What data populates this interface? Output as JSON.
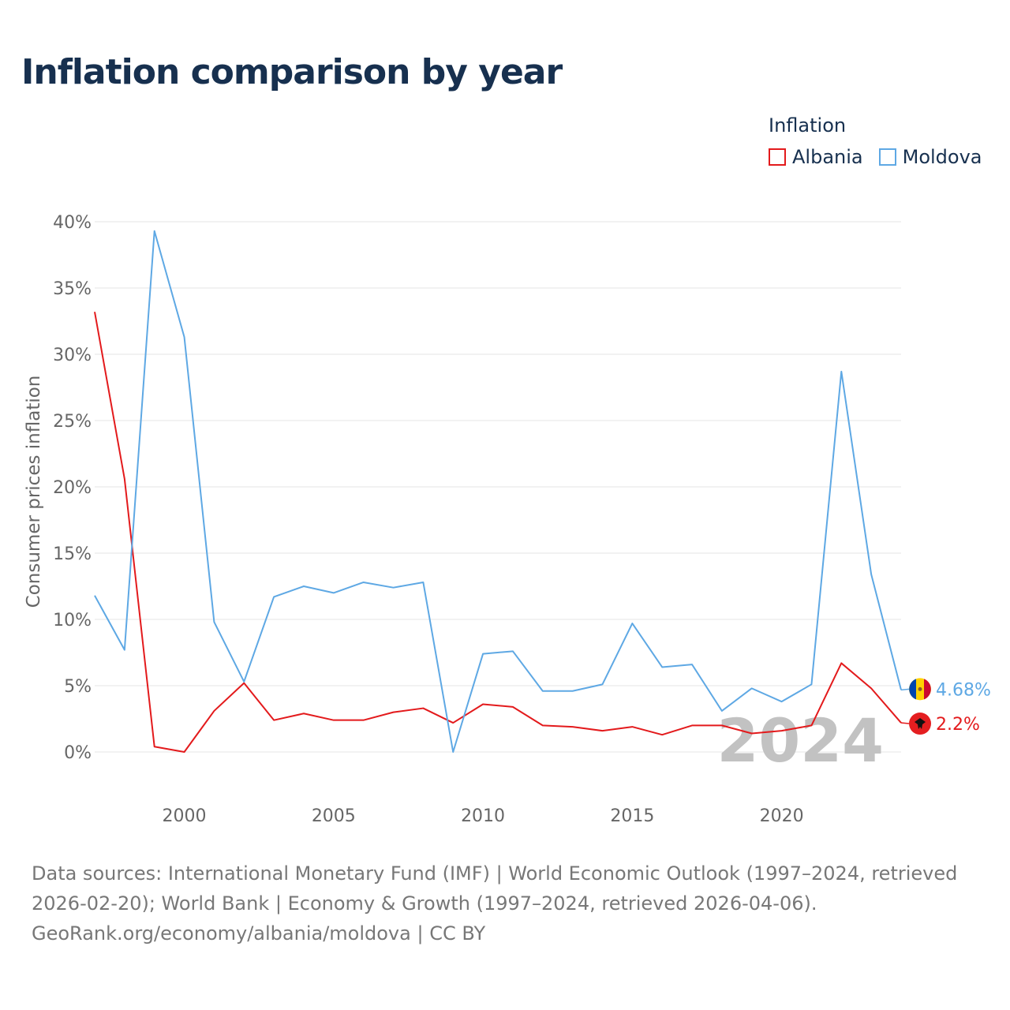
{
  "title": "Inflation comparison by year",
  "legend": {
    "title": "Inflation",
    "items": [
      {
        "label": "Albania",
        "color": "#e31a1c"
      },
      {
        "label": "Moldova",
        "color": "#5ea8e4"
      }
    ]
  },
  "footer": {
    "sources": "Data sources: International Monetary Fund (IMF) | World Economic Outlook (1997–2024, retrieved 2026-02-20); World Bank | Economy & Growth (1997–2024, retrieved 2026-04-06).",
    "attribution": "GeoRank.org/economy/albania/moldova | CC BY"
  },
  "chart_data": {
    "type": "line",
    "title": "Inflation comparison by year",
    "xlabel": "",
    "ylabel": "Consumer prices inflation",
    "x": [
      1997,
      1998,
      1999,
      2000,
      2001,
      2002,
      2003,
      2004,
      2005,
      2006,
      2007,
      2008,
      2009,
      2010,
      2011,
      2012,
      2013,
      2014,
      2015,
      2016,
      2017,
      2018,
      2019,
      2020,
      2021,
      2022,
      2023,
      2024
    ],
    "xlim": [
      1997,
      2024
    ],
    "ylim": [
      0,
      40
    ],
    "xticks": [
      2000,
      2005,
      2010,
      2015,
      2020
    ],
    "yticks": [
      0,
      5,
      10,
      15,
      20,
      25,
      30,
      35,
      40
    ],
    "ytick_labels": [
      "0%",
      "5%",
      "10%",
      "15%",
      "20%",
      "25%",
      "30%",
      "35%",
      "40%"
    ],
    "grid": true,
    "year_watermark": "2024",
    "series": [
      {
        "name": "Albania",
        "color": "#e31a1c",
        "end_label": "2.2%",
        "values": [
          33.2,
          20.6,
          0.4,
          0.0,
          3.1,
          5.2,
          2.4,
          2.9,
          2.4,
          2.4,
          3.0,
          3.3,
          2.2,
          3.6,
          3.4,
          2.0,
          1.9,
          1.6,
          1.9,
          1.3,
          2.0,
          2.0,
          1.4,
          1.6,
          2.0,
          6.7,
          4.8,
          2.2
        ]
      },
      {
        "name": "Moldova",
        "color": "#5ea8e4",
        "end_label": "4.68%",
        "values": [
          11.8,
          7.7,
          39.3,
          31.3,
          9.8,
          5.3,
          11.7,
          12.5,
          12.0,
          12.8,
          12.4,
          12.8,
          0.0,
          7.4,
          7.6,
          4.6,
          4.6,
          5.1,
          9.7,
          6.4,
          6.6,
          3.1,
          4.8,
          3.8,
          5.1,
          28.7,
          13.4,
          4.68
        ]
      }
    ]
  }
}
